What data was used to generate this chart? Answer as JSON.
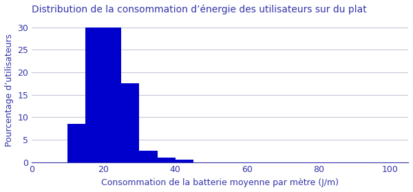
{
  "title": "Distribution de la consommation d’énergie des utilisateurs sur du plat",
  "xlabel": "Consommation de la batterie moyenne par mètre (J/m)",
  "ylabel": "Pourcentage d’utilisateurs",
  "bar_color": "#0000cc",
  "bar_left_edges": [
    10,
    15,
    20,
    25,
    30,
    35,
    40
  ],
  "bar_heights": [
    8.5,
    30,
    30,
    17.5,
    2.5,
    1.0,
    0.5
  ],
  "bin_width": 5,
  "xlim": [
    0,
    105
  ],
  "ylim": [
    0,
    32
  ],
  "xticks": [
    0,
    20,
    40,
    60,
    80,
    100
  ],
  "yticks": [
    0,
    5,
    10,
    15,
    20,
    25,
    30
  ],
  "background_color": "#ffffff",
  "grid_color": "#c8c8d8",
  "title_color": "#3333aa",
  "axis_color": "#3333aa",
  "tick_color": "#3333aa",
  "label_color": "#3333aa",
  "figsize": [
    6.0,
    2.79
  ],
  "dpi": 100,
  "title_fontsize": 10,
  "label_fontsize": 9,
  "tick_fontsize": 9
}
